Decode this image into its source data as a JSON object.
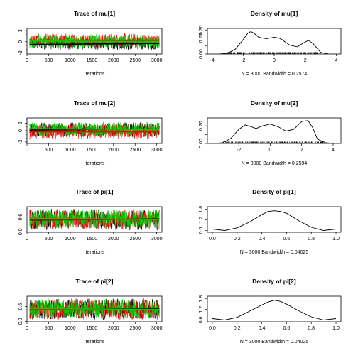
{
  "chart_data": [
    {
      "type": "line",
      "title": "Trace of mu[1]",
      "xlabel": "Iterations",
      "xlim": [
        0,
        3120
      ],
      "ylim": [
        -3.3,
        3.6
      ],
      "xticks": [
        0,
        500,
        1000,
        1500,
        2000,
        2500,
        3000
      ],
      "yticks": [
        -3,
        0,
        3
      ],
      "series": [
        {
          "color": "#000000",
          "center": -0.6,
          "spread": 1.5
        },
        {
          "color": "#ff0000",
          "center": 0.4,
          "spread": 1.7
        },
        {
          "color": "#00cd00",
          "center": 0.1,
          "spread": 1.8
        }
      ]
    },
    {
      "type": "line",
      "title": "Density of mu[1]",
      "xlabel": "N = 3000   Bandwidth = 0.2574",
      "xlim": [
        -4.3,
        4.3
      ],
      "ylim": [
        0,
        0.32
      ],
      "xticks": [
        -4,
        -2,
        0,
        2,
        4
      ],
      "yticks": [
        0.0,
        0.1,
        0.2,
        0.3
      ],
      "ytick_labels": [
        "0.00",
        "",
        "0.20",
        "0.30"
      ],
      "x": [
        -3.5,
        -3.0,
        -2.5,
        -2.0,
        -1.7,
        -1.5,
        -1.3,
        -1.0,
        -0.5,
        0.0,
        0.3,
        0.5,
        1.0,
        1.5,
        1.9,
        2.2,
        2.5,
        3.0,
        3.5
      ],
      "y": [
        0.0,
        0.01,
        0.06,
        0.18,
        0.26,
        0.28,
        0.26,
        0.21,
        0.19,
        0.21,
        0.2,
        0.18,
        0.11,
        0.09,
        0.14,
        0.17,
        0.13,
        0.02,
        0.0
      ]
    },
    {
      "type": "line",
      "title": "Trace of mu[2]",
      "xlabel": "Iterations",
      "xlim": [
        0,
        3120
      ],
      "ylim": [
        -3.4,
        3.4
      ],
      "xticks": [
        0,
        500,
        1000,
        1500,
        2000,
        2500,
        3000
      ],
      "yticks": [
        -3,
        0,
        2
      ],
      "series": [
        {
          "color": "#000000",
          "center": 0.3,
          "spread": 1.8
        },
        {
          "color": "#ff0000",
          "center": -0.3,
          "spread": 1.9
        },
        {
          "color": "#00cd00",
          "center": 0.4,
          "spread": 1.8
        }
      ]
    },
    {
      "type": "line",
      "title": "Density of mu[2]",
      "xlabel": "N = 3000   Bandwidth = 0.2594",
      "xlim": [
        -4.0,
        4.5
      ],
      "ylim": [
        0,
        0.29
      ],
      "xticks": [
        -2,
        0,
        2,
        4
      ],
      "yticks": [
        0.0,
        0.1,
        0.2
      ],
      "ytick_labels": [
        "0.00",
        "",
        "0.20"
      ],
      "x": [
        -3.5,
        -3.0,
        -2.5,
        -2.0,
        -1.6,
        -1.2,
        -0.9,
        -0.5,
        0.0,
        0.5,
        1.0,
        1.5,
        2.0,
        2.4,
        2.7,
        3.0,
        3.5,
        4.0
      ],
      "y": [
        0.0,
        0.01,
        0.06,
        0.16,
        0.21,
        0.19,
        0.17,
        0.2,
        0.22,
        0.19,
        0.14,
        0.16,
        0.25,
        0.26,
        0.18,
        0.05,
        0.01,
        0.0
      ]
    },
    {
      "type": "line",
      "title": "Trace of pi[1]",
      "xlabel": "Iterations",
      "xlim": [
        0,
        3120
      ],
      "ylim": [
        -0.02,
        1.02
      ],
      "xticks": [
        0,
        500,
        1000,
        1500,
        2000,
        2500,
        3000
      ],
      "yticks": [
        0.0,
        0.6
      ],
      "series": [
        {
          "color": "#000000",
          "center": 0.5,
          "spread": 0.4
        },
        {
          "color": "#ff0000",
          "center": 0.5,
          "spread": 0.38
        },
        {
          "color": "#00cd00",
          "center": 0.52,
          "spread": 0.38
        }
      ]
    },
    {
      "type": "line",
      "title": "Density of pi[1]",
      "xlabel": "N = 3000   Bandwidth = 0.04025",
      "xlim": [
        -0.04,
        1.04
      ],
      "ylim": [
        0.5,
        1.95
      ],
      "xticks": [
        0.0,
        0.2,
        0.4,
        0.6,
        0.8,
        1.0
      ],
      "yticks": [
        0.6,
        1.2,
        1.8
      ],
      "x": [
        0.0,
        0.1,
        0.2,
        0.3,
        0.4,
        0.45,
        0.5,
        0.55,
        0.6,
        0.7,
        0.8,
        0.9,
        1.0
      ],
      "y": [
        0.68,
        0.6,
        0.75,
        1.08,
        1.5,
        1.68,
        1.72,
        1.68,
        1.58,
        1.15,
        0.78,
        0.6,
        0.68
      ]
    },
    {
      "type": "line",
      "title": "Trace of pi[2]",
      "xlabel": "Iterations",
      "xlim": [
        0,
        3120
      ],
      "ylim": [
        -0.02,
        1.02
      ],
      "xticks": [
        0,
        500,
        1000,
        1500,
        2000,
        2500,
        3000
      ],
      "yticks": [
        0.0,
        0.6
      ],
      "series": [
        {
          "color": "#000000",
          "center": 0.5,
          "spread": 0.4
        },
        {
          "color": "#ff0000",
          "center": 0.48,
          "spread": 0.38
        },
        {
          "color": "#00cd00",
          "center": 0.5,
          "spread": 0.38
        }
      ]
    },
    {
      "type": "line",
      "title": "Density of pi[2]",
      "xlabel": "N = 3000   Bandwidth = 0.04025",
      "xlim": [
        -0.04,
        1.04
      ],
      "ylim": [
        0.5,
        1.95
      ],
      "xticks": [
        0.0,
        0.2,
        0.4,
        0.6,
        0.8,
        1.0
      ],
      "yticks": [
        0.6,
        1.2,
        1.8
      ],
      "x": [
        0.0,
        0.1,
        0.2,
        0.3,
        0.4,
        0.45,
        0.5,
        0.55,
        0.6,
        0.7,
        0.8,
        0.9,
        1.0
      ],
      "y": [
        0.68,
        0.6,
        0.75,
        1.1,
        1.45,
        1.62,
        1.72,
        1.66,
        1.5,
        1.12,
        0.78,
        0.6,
        0.68
      ]
    }
  ]
}
